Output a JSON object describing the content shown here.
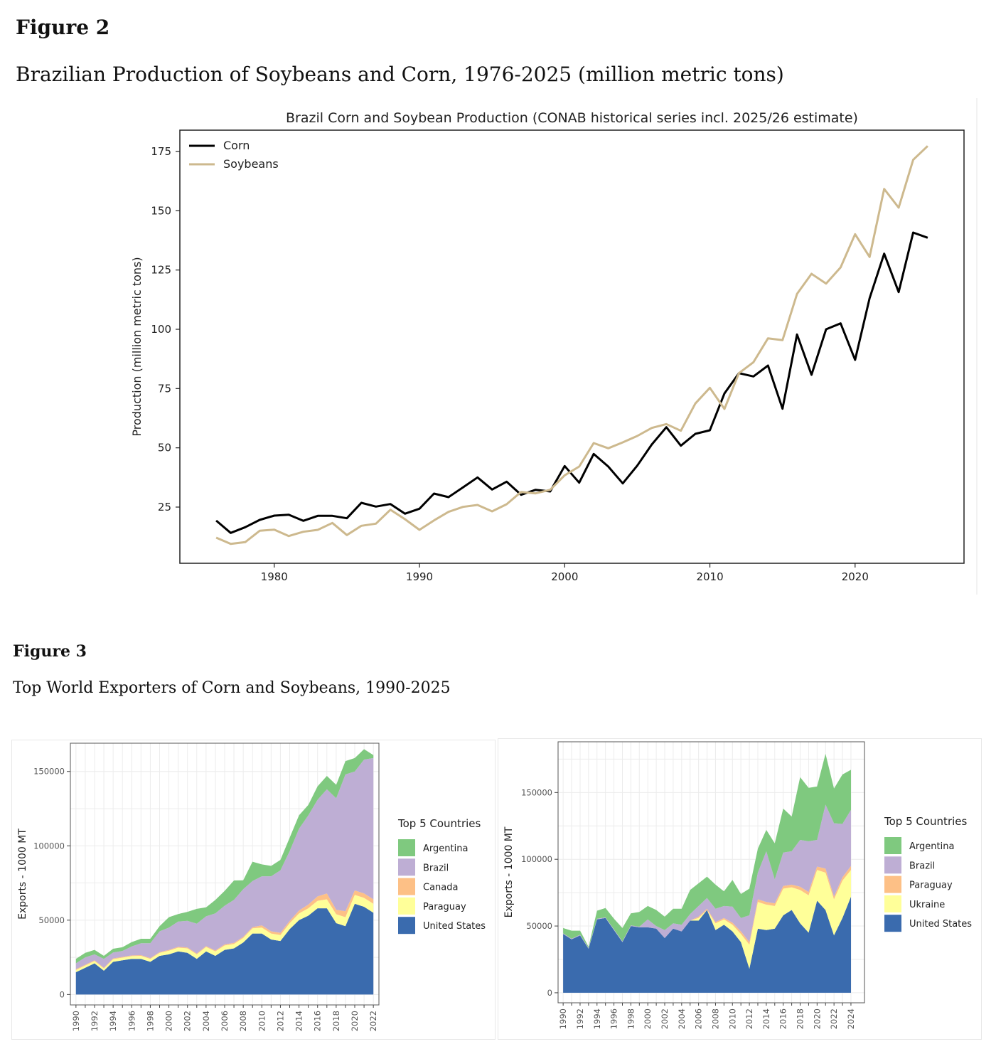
{
  "figure2": {
    "label": "Figure 2",
    "caption": "Brazilian Production of Soybeans and Corn, 1976-2025 (million metric tons)"
  },
  "figure3": {
    "label": "Figure 3",
    "caption": "Top World Exporters of Corn and Soybeans, 1990-2025"
  },
  "chart_data": [
    {
      "type": "line",
      "title": "Brazil Corn and Soybean Production (CONAB historical series incl. 2025/26 estimate)",
      "xlabel": "",
      "ylabel": "Production (million metric tons)",
      "xlim": [
        1973.5,
        2027.5
      ],
      "ylim": [
        1.3,
        184
      ],
      "xticks": [
        1980,
        1990,
        2000,
        2010,
        2020
      ],
      "yticks": [
        25,
        50,
        75,
        100,
        125,
        150,
        175
      ],
      "grid": false,
      "legend_position": "top-left",
      "x": [
        1976,
        1977,
        1978,
        1979,
        1980,
        1981,
        1982,
        1983,
        1984,
        1985,
        1986,
        1987,
        1988,
        1989,
        1990,
        1991,
        1992,
        1993,
        1994,
        1995,
        1996,
        1997,
        1998,
        1999,
        2000,
        2001,
        2002,
        2003,
        2004,
        2005,
        2006,
        2007,
        2008,
        2009,
        2010,
        2011,
        2012,
        2013,
        2014,
        2015,
        2016,
        2017,
        2018,
        2019,
        2020,
        2021,
        2022,
        2023,
        2024,
        2025
      ],
      "series": [
        {
          "name": "Corn",
          "color": "#000000",
          "values": [
            19.3,
            14.1,
            16.5,
            19.6,
            21.4,
            21.8,
            19.2,
            21.3,
            21.3,
            20.3,
            26.8,
            25.2,
            26.3,
            22.2,
            24.3,
            30.7,
            29.2,
            33.3,
            37.5,
            32.4,
            35.7,
            30.2,
            32.3,
            31.6,
            42.3,
            35.3,
            47.4,
            42.1,
            35.0,
            42.5,
            51.4,
            58.7,
            50.9,
            55.9,
            57.4,
            72.9,
            81.5,
            80.1,
            84.7,
            66.5,
            97.8,
            80.8,
            100.0,
            102.5,
            87.1,
            113.1,
            131.9,
            115.7,
            140.8,
            138.6
          ]
        },
        {
          "name": "Soybeans",
          "color": "#cdb98e",
          "values": [
            12.1,
            9.5,
            10.2,
            15.0,
            15.5,
            12.8,
            14.6,
            15.4,
            18.3,
            13.2,
            17.1,
            18.0,
            23.9,
            19.9,
            15.4,
            19.4,
            23.0,
            25.1,
            25.9,
            23.2,
            26.2,
            31.4,
            30.8,
            32.3,
            38.4,
            42.1,
            52.0,
            49.8,
            52.3,
            55.0,
            58.4,
            60.0,
            57.2,
            68.7,
            75.3,
            66.4,
            81.5,
            86.1,
            96.2,
            95.4,
            114.9,
            123.4,
            119.3,
            126.1,
            140.1,
            130.5,
            159.2,
            151.3,
            171.5,
            177.3
          ]
        }
      ]
    },
    {
      "type": "area",
      "stacked": true,
      "title": "",
      "xlabel": "",
      "ylabel": "Exports - 1000 MT",
      "xlim": [
        1989.4,
        2022.6
      ],
      "ylim": [
        -7000,
        169000
      ],
      "yticks": [
        0,
        50000,
        100000,
        150000
      ],
      "xticks": [
        1990,
        1992,
        1994,
        1996,
        1998,
        2000,
        2002,
        2004,
        2006,
        2008,
        2010,
        2012,
        2014,
        2016,
        2018,
        2020,
        2022
      ],
      "grid": true,
      "legend_title": "Top 5 Countries",
      "legend_position": "right",
      "x": [
        1990,
        1991,
        1992,
        1993,
        1994,
        1995,
        1996,
        1997,
        1998,
        1999,
        2000,
        2001,
        2002,
        2003,
        2004,
        2005,
        2006,
        2007,
        2008,
        2009,
        2010,
        2011,
        2012,
        2013,
        2014,
        2015,
        2016,
        2017,
        2018,
        2019,
        2020,
        2021,
        2022
      ],
      "series": [
        {
          "name": "United States",
          "color": "#3a6bae",
          "values": [
            15000,
            18000,
            21000,
            16000,
            22000,
            23000,
            24000,
            24000,
            22000,
            26000,
            27000,
            29000,
            28000,
            24000,
            29000,
            26000,
            30000,
            31000,
            35000,
            41000,
            41000,
            37000,
            36000,
            44000,
            50000,
            53000,
            58000,
            58000,
            48000,
            46000,
            61000,
            59000,
            55000
          ]
        },
        {
          "name": "Paraguay",
          "color": "#ffff99",
          "values": [
            1500,
            1500,
            1500,
            1500,
            1800,
            1800,
            1800,
            2000,
            2000,
            2000,
            2500,
            2500,
            3000,
            3000,
            3000,
            3000,
            3000,
            3000,
            3000,
            3500,
            4000,
            4000,
            4000,
            4000,
            4500,
            5000,
            5000,
            6000,
            6000,
            6000,
            6000,
            6000,
            6000
          ]
        },
        {
          "name": "Canada",
          "color": "#fdc086",
          "values": [
            500,
            500,
            500,
            500,
            500,
            500,
            500,
            500,
            500,
            500,
            500,
            600,
            600,
            600,
            600,
            600,
            700,
            700,
            800,
            800,
            1500,
            1500,
            1500,
            1500,
            2000,
            2500,
            3000,
            4000,
            3000,
            4000,
            3000,
            3000,
            3000
          ]
        },
        {
          "name": "Brazil",
          "color": "#beaed4",
          "values": [
            4000,
            5000,
            4000,
            6000,
            4000,
            4000,
            6000,
            8000,
            10000,
            14000,
            15000,
            17000,
            18000,
            20000,
            20000,
            25000,
            26000,
            29000,
            32000,
            31000,
            33000,
            37000,
            42000,
            47000,
            55000,
            60000,
            65000,
            70000,
            75000,
            92000,
            80000,
            90000,
            95000
          ]
        },
        {
          "name": "Argentina",
          "color": "#7fc97f",
          "values": [
            3000,
            3000,
            3000,
            2000,
            2500,
            2500,
            3000,
            3000,
            3000,
            3500,
            7000,
            5000,
            6000,
            10000,
            6000,
            9000,
            10000,
            13000,
            6000,
            13000,
            8000,
            7000,
            7000,
            9000,
            9000,
            7000,
            9000,
            9000,
            9000,
            9000,
            9000,
            7000,
            2000
          ]
        }
      ]
    },
    {
      "type": "area",
      "stacked": true,
      "title": "",
      "xlabel": "",
      "ylabel": "Exports - 1000 MT",
      "xlim": [
        1989.4,
        2025.6
      ],
      "ylim": [
        -7500,
        188000
      ],
      "yticks": [
        0,
        50000,
        100000,
        150000
      ],
      "xticks": [
        1990,
        1992,
        1994,
        1996,
        1998,
        2000,
        2002,
        2004,
        2006,
        2008,
        2010,
        2012,
        2014,
        2016,
        2018,
        2020,
        2022,
        2024
      ],
      "grid": true,
      "legend_title": "Top 5 Countries",
      "legend_position": "right",
      "x": [
        1990,
        1991,
        1992,
        1993,
        1994,
        1995,
        1996,
        1997,
        1998,
        1999,
        2000,
        2001,
        2002,
        2003,
        2004,
        2005,
        2006,
        2007,
        2008,
        2009,
        2010,
        2011,
        2012,
        2013,
        2014,
        2015,
        2016,
        2017,
        2018,
        2019,
        2020,
        2021,
        2022,
        2023,
        2024
      ],
      "series": [
        {
          "name": "United States",
          "color": "#3a6bae",
          "values": [
            44000,
            40000,
            43000,
            33000,
            55000,
            56000,
            47000,
            38000,
            50000,
            49000,
            49000,
            48000,
            41000,
            48000,
            46000,
            54000,
            54000,
            62000,
            47000,
            51000,
            46000,
            38000,
            18000,
            48000,
            47000,
            48000,
            58000,
            62000,
            52000,
            45000,
            69000,
            62000,
            43000,
            56000,
            72000
          ]
        },
        {
          "name": "Ukraine",
          "color": "#ffff99",
          "values": [
            0,
            0,
            0,
            0,
            0,
            0,
            0,
            0,
            0,
            0,
            0,
            0,
            0,
            0,
            0,
            0,
            2000,
            0,
            5000,
            4000,
            5000,
            6000,
            18000,
            20000,
            19000,
            17000,
            20000,
            17000,
            25000,
            28000,
            23000,
            28000,
            27000,
            28000,
            20000
          ]
        },
        {
          "name": "Paraguay",
          "color": "#fdc086",
          "values": [
            0,
            0,
            0,
            0,
            0,
            0,
            0,
            0,
            0,
            0,
            0,
            0,
            0,
            0,
            0,
            0,
            1000,
            1000,
            1000,
            1000,
            1500,
            2000,
            2000,
            2000,
            2000,
            2000,
            2000,
            2000,
            2500,
            2500,
            2500,
            3000,
            2000,
            2500,
            3000
          ]
        },
        {
          "name": "Brazil",
          "color": "#beaed4",
          "values": [
            500,
            500,
            500,
            500,
            500,
            500,
            500,
            500,
            500,
            500,
            6000,
            2000,
            6000,
            4000,
            5000,
            5000,
            8000,
            8000,
            10000,
            9000,
            12000,
            10000,
            20000,
            20000,
            38000,
            18000,
            25000,
            25000,
            35000,
            38000,
            20000,
            48000,
            55000,
            40000,
            42000
          ]
        },
        {
          "name": "Argentina",
          "color": "#7fc97f",
          "values": [
            4000,
            6000,
            3000,
            1000,
            6000,
            7000,
            8000,
            10000,
            9000,
            11000,
            10000,
            12000,
            10000,
            11000,
            12000,
            18000,
            17000,
            16000,
            18000,
            11000,
            20000,
            18000,
            20000,
            18000,
            16000,
            27000,
            33000,
            26000,
            47000,
            40000,
            40000,
            38000,
            26000,
            37000,
            30000
          ]
        }
      ]
    }
  ]
}
